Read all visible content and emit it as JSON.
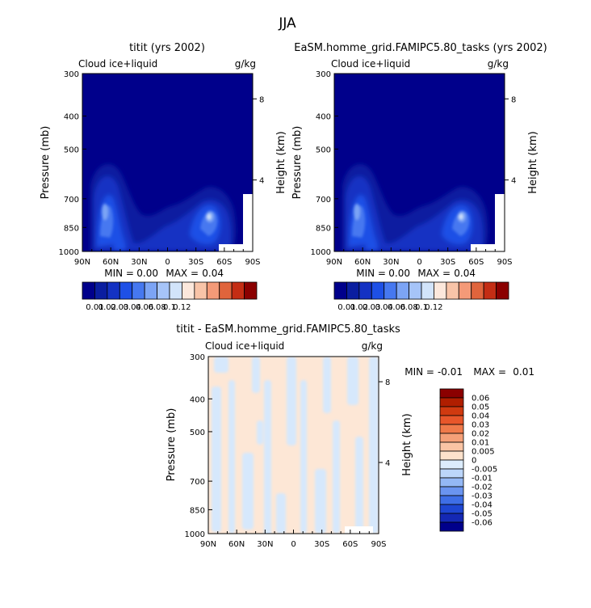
{
  "figure_title": "JJA",
  "colors": {
    "land_mask": "#ffffff",
    "frame": "#000000"
  },
  "chart_data": [
    {
      "type": "heatmap",
      "title": "titit (yrs 2002)",
      "left_label": "Cloud ice+liquid",
      "right_label": "g/kg",
      "ylabel": "Pressure (mb)",
      "y2label": "Height (km)",
      "x_tick_labels": [
        "90N",
        "60N",
        "30N",
        "0",
        "30S",
        "60S",
        "90S"
      ],
      "x_ticks": [
        90,
        60,
        30,
        0,
        -30,
        -60,
        -90
      ],
      "y_tick_labels": [
        "300",
        "400",
        "500",
        "700",
        "850",
        "1000"
      ],
      "y_ticks": [
        300,
        400,
        500,
        700,
        850,
        1000
      ],
      "y2_tick_labels": [
        "8",
        "4"
      ],
      "y2_ticks": [
        8,
        4
      ],
      "xlim": [
        90,
        -90
      ],
      "ylim": [
        1000,
        300
      ],
      "y_scale": "log-pressure",
      "min_label": "MIN = ",
      "min_value": "0.00",
      "max_label": "MAX = ",
      "max_value": "0.04",
      "colorbar": {
        "orientation": "horizontal",
        "labels": [
          "0.01",
          "0.02",
          "0.03",
          "0.04",
          "0.06",
          "0.08",
          "0.1",
          "0.12"
        ],
        "levels": [
          0.01,
          0.02,
          0.03,
          0.04,
          0.06,
          0.08,
          0.1,
          0.12
        ],
        "colors": [
          "#00008b",
          "#0a1ea0",
          "#1432c3",
          "#1e50e6",
          "#4678f0",
          "#7ca4f5",
          "#a6c4f8",
          "#d2e4fa",
          "#fce8dc",
          "#f8c4a8",
          "#f49a78",
          "#e0643c",
          "#c42d14",
          "#8b0000"
        ]
      },
      "features": [
        {
          "lat": 65,
          "p": 830,
          "value": 0.03
        },
        {
          "lat": 55,
          "p": 950,
          "value": 0.025
        },
        {
          "lat": 45,
          "p": 960,
          "value": 0.02
        },
        {
          "lat": -45,
          "p": 860,
          "value": 0.04
        },
        {
          "lat": 5,
          "p": 900,
          "value": 0.015
        }
      ]
    },
    {
      "type": "heatmap",
      "title": "EaSM.homme_grid.FAMIPC5.80_tasks (yrs 2002)",
      "left_label": "Cloud ice+liquid",
      "right_label": "g/kg",
      "ylabel": "Pressure (mb)",
      "y2label": "Height (km)",
      "x_tick_labels": [
        "90N",
        "60N",
        "30N",
        "0",
        "30S",
        "60S",
        "90S"
      ],
      "x_ticks": [
        90,
        60,
        30,
        0,
        -30,
        -60,
        -90
      ],
      "y_tick_labels": [
        "300",
        "400",
        "500",
        "700",
        "850",
        "1000"
      ],
      "y_ticks": [
        300,
        400,
        500,
        700,
        850,
        1000
      ],
      "y2_tick_labels": [
        "8",
        "4"
      ],
      "y2_ticks": [
        8,
        4
      ],
      "xlim": [
        90,
        -90
      ],
      "ylim": [
        1000,
        300
      ],
      "y_scale": "log-pressure",
      "min_label": "MIN = ",
      "min_value": "0.00",
      "max_label": "MAX = ",
      "max_value": "0.04",
      "colorbar": {
        "orientation": "horizontal",
        "labels": [
          "0.01",
          "0.02",
          "0.03",
          "0.04",
          "0.06",
          "0.08",
          "0.1",
          "0.12"
        ],
        "levels": [
          0.01,
          0.02,
          0.03,
          0.04,
          0.06,
          0.08,
          0.1,
          0.12
        ],
        "colors": [
          "#00008b",
          "#0a1ea0",
          "#1432c3",
          "#1e50e6",
          "#4678f0",
          "#7ca4f5",
          "#a6c4f8",
          "#d2e4fa",
          "#fce8dc",
          "#f8c4a8",
          "#f49a78",
          "#e0643c",
          "#c42d14",
          "#8b0000"
        ]
      },
      "features": [
        {
          "lat": 65,
          "p": 830,
          "value": 0.03
        },
        {
          "lat": 55,
          "p": 950,
          "value": 0.025
        },
        {
          "lat": 45,
          "p": 960,
          "value": 0.02
        },
        {
          "lat": -45,
          "p": 860,
          "value": 0.04
        },
        {
          "lat": 5,
          "p": 900,
          "value": 0.015
        }
      ]
    },
    {
      "type": "heatmap",
      "title": "titit - EaSM.homme_grid.FAMIPC5.80_tasks",
      "left_label": "Cloud ice+liquid",
      "right_label": "g/kg",
      "ylabel": "Pressure (mb)",
      "y2label": "Height (km)",
      "x_tick_labels": [
        "90N",
        "60N",
        "30N",
        "0",
        "30S",
        "60S",
        "90S"
      ],
      "x_ticks": [
        90,
        60,
        30,
        0,
        -30,
        -60,
        -90
      ],
      "y_tick_labels": [
        "300",
        "400",
        "500",
        "700",
        "850",
        "1000"
      ],
      "y_ticks": [
        300,
        400,
        500,
        700,
        850,
        1000
      ],
      "y2_tick_labels": [
        "8",
        "4"
      ],
      "y2_ticks": [
        8,
        4
      ],
      "xlim": [
        90,
        -90
      ],
      "ylim": [
        1000,
        300
      ],
      "y_scale": "log-pressure",
      "min_label": "MIN = ",
      "min_value": "-0.01",
      "max_label": "MAX = ",
      "max_value": "0.01",
      "colorbar": {
        "orientation": "vertical",
        "labels": [
          "0.06",
          "0.05",
          "0.04",
          "0.03",
          "0.02",
          "0.01",
          "0.005",
          "0",
          "-0.005",
          "-0.01",
          "-0.02",
          "-0.03",
          "-0.04",
          "-0.05",
          "-0.06"
        ],
        "levels": [
          0.06,
          0.05,
          0.04,
          0.03,
          0.02,
          0.01,
          0.005,
          0,
          -0.005,
          -0.01,
          -0.02,
          -0.03,
          -0.04,
          -0.05,
          -0.06
        ],
        "colors": [
          "#8b0000",
          "#b01e00",
          "#d03a10",
          "#e8562a",
          "#f07a4a",
          "#f5a078",
          "#fac4a4",
          "#fde2cc",
          "#dcecfc",
          "#bcd6fa",
          "#94b8f5",
          "#6a94f0",
          "#3e6ee6",
          "#1e46d2",
          "#1428b4",
          "#00008b"
        ]
      },
      "field_colors": {
        "positive": "#fde7d6",
        "negative": "#d6e8fc"
      }
    }
  ]
}
